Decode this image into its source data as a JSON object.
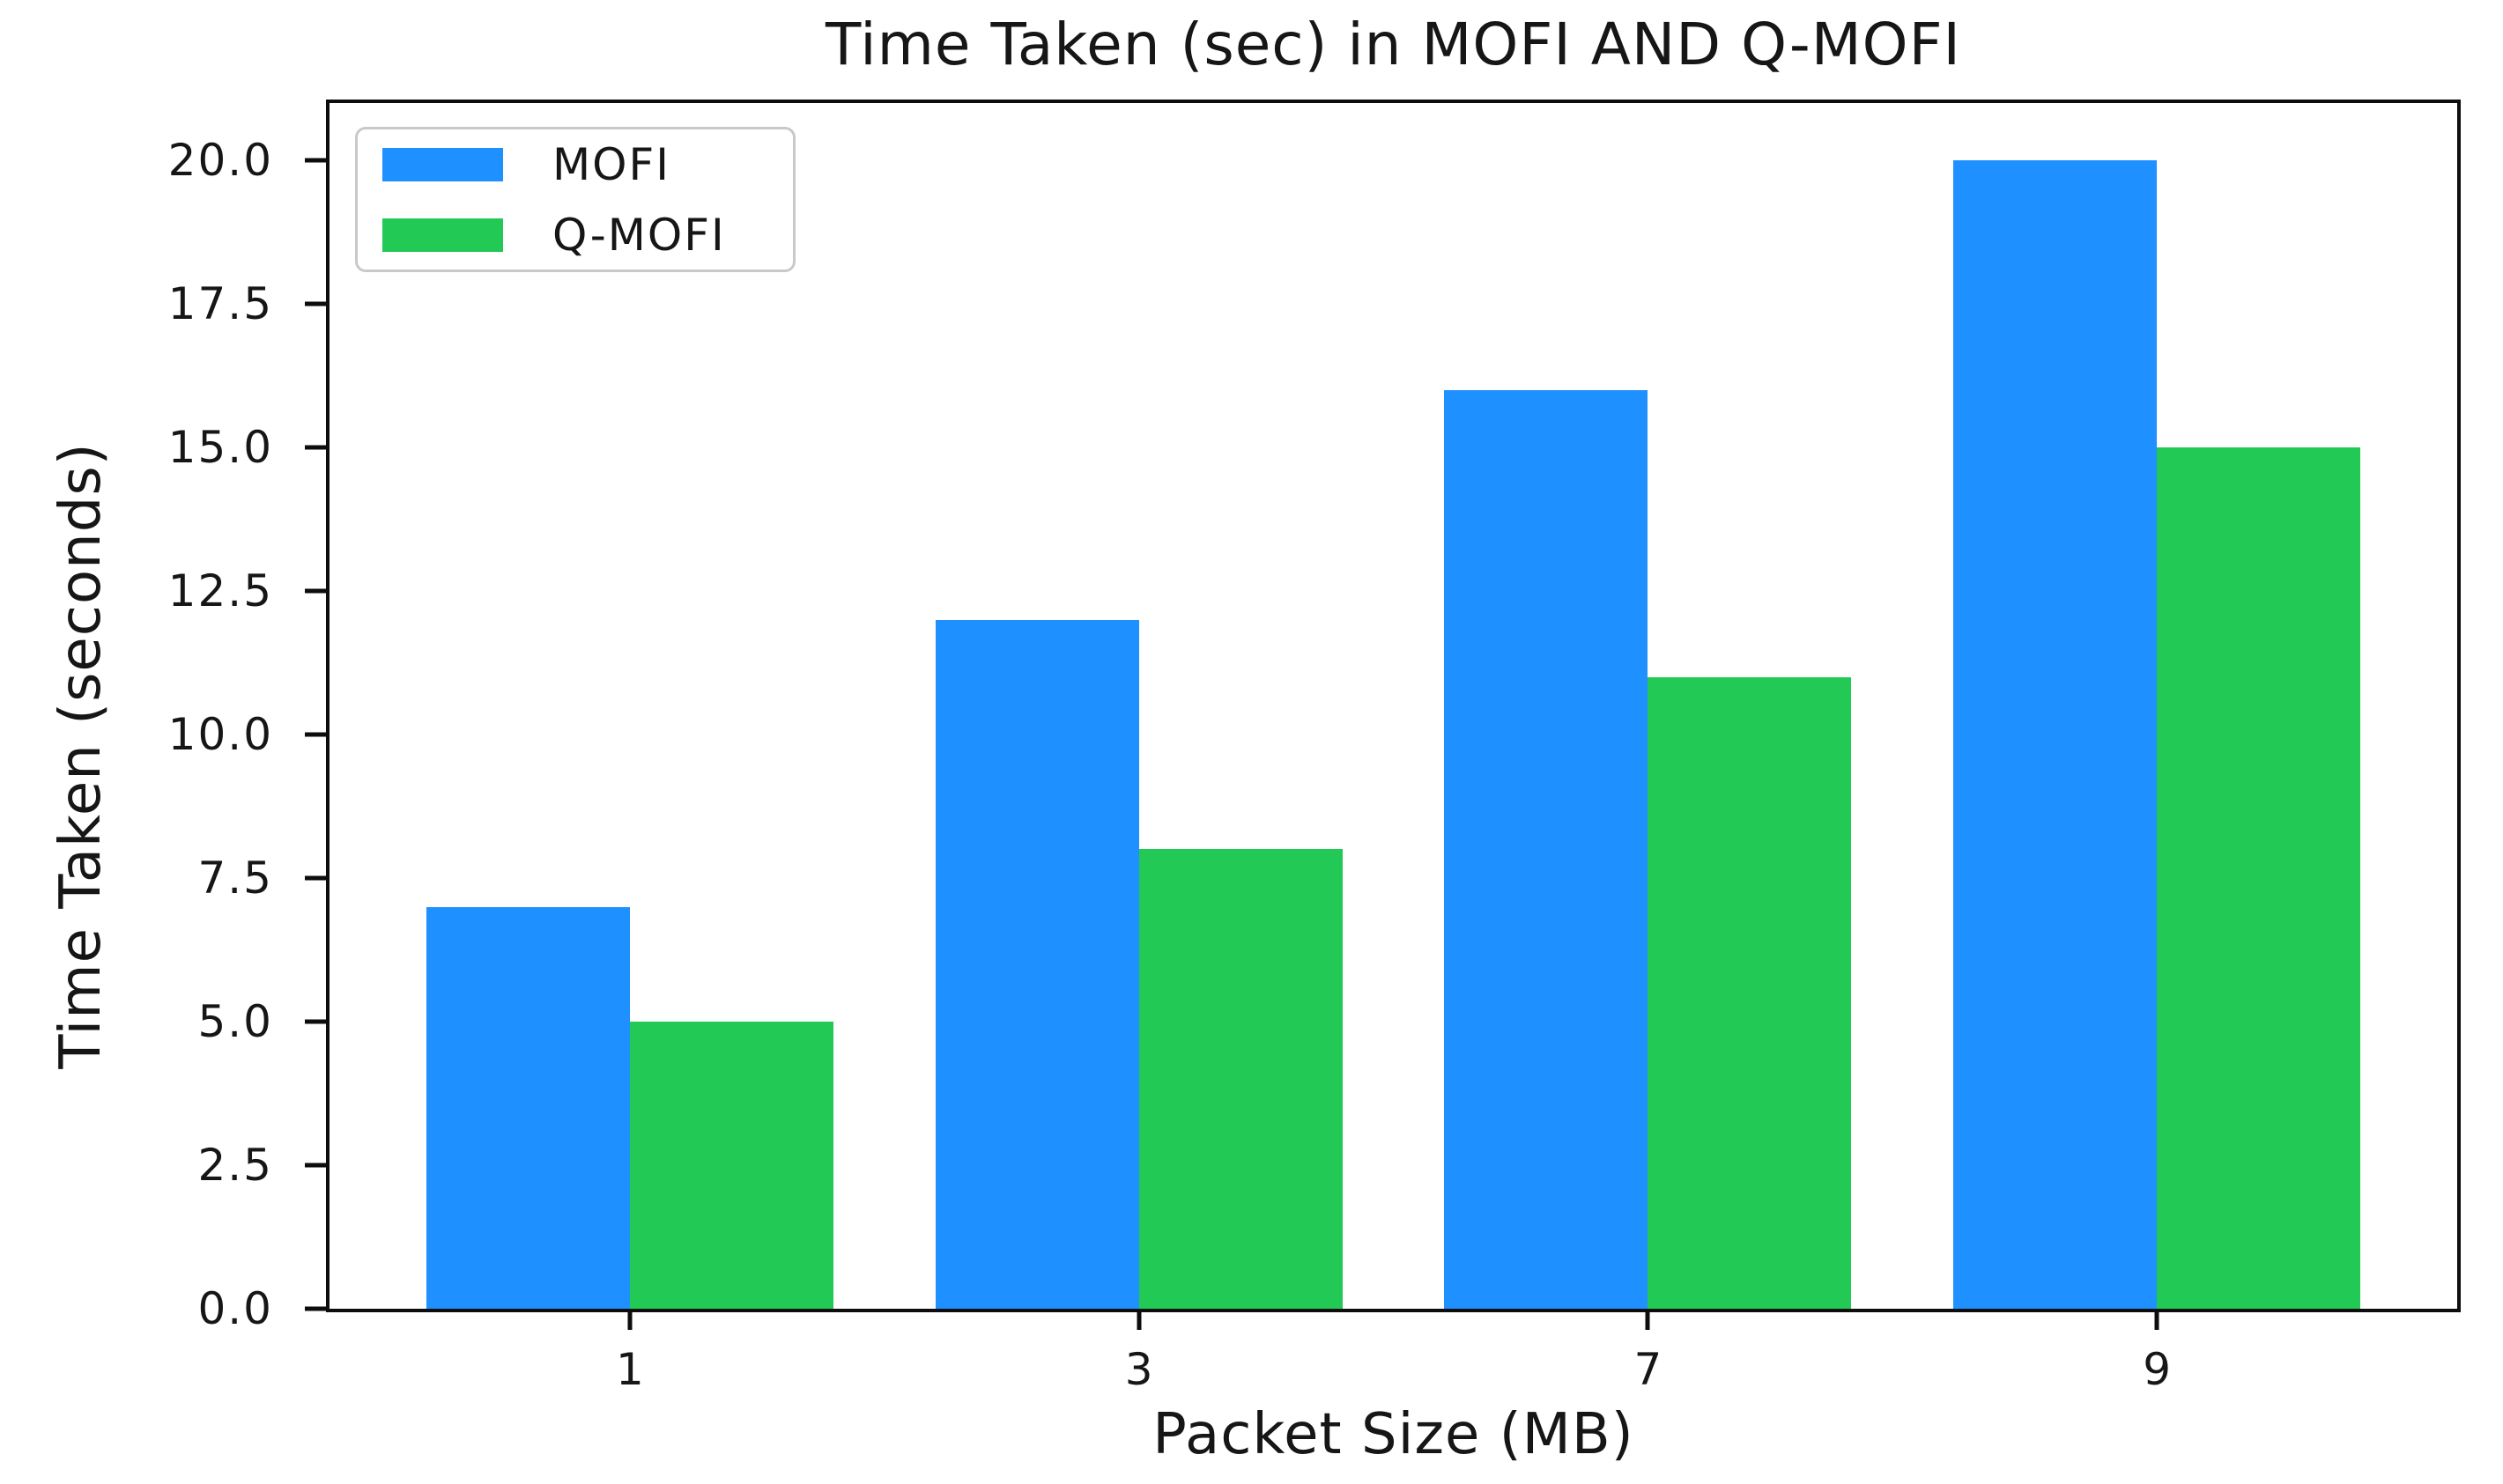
{
  "chart_data": {
    "type": "bar",
    "title": "Time Taken (sec) in MOFI AND Q-MOFI",
    "xlabel": "Packet Size (MB)",
    "ylabel": "Time Taken (seconds)",
    "categories": [
      "1",
      "3",
      "7",
      "9"
    ],
    "series": [
      {
        "name": "MOFI",
        "color": "#1E90FF",
        "values": [
          7,
          12,
          16,
          20
        ]
      },
      {
        "name": "Q-MOFI",
        "color": "#22C955",
        "values": [
          5,
          8,
          11,
          15
        ]
      }
    ],
    "yticks": [
      0,
      2.5,
      5,
      7.5,
      10,
      12.5,
      15,
      17.5,
      20
    ],
    "ytick_labels": [
      "0.0",
      "2.5",
      "5.0",
      "7.5",
      "10.0",
      "12.5",
      "15.0",
      "17.5",
      "20.0"
    ],
    "ylim": [
      0,
      21
    ],
    "x_units_total": 4.18,
    "x_first_center_units": 0.59,
    "bar_width_units": 0.4,
    "grid": false,
    "legend_position": "upper left"
  }
}
